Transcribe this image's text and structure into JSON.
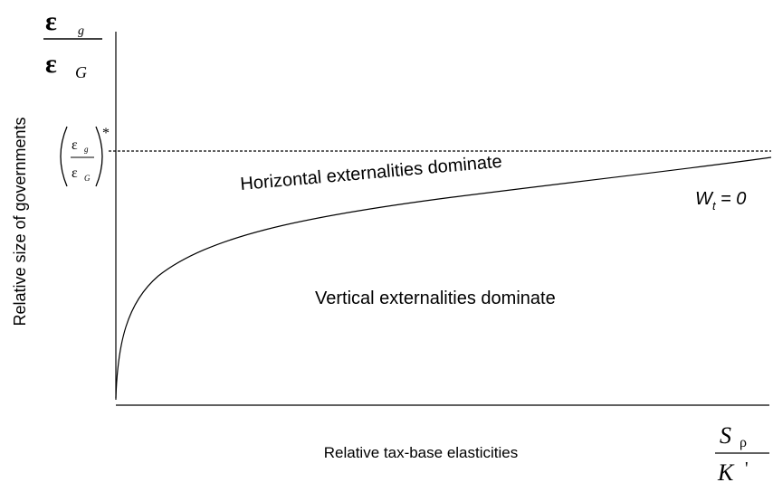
{
  "y_axis": {
    "label": "Relative size of governments",
    "symbol": {
      "numerator": "ε",
      "numerator_sub": "g",
      "denominator": "ε",
      "denominator_sub": "G"
    },
    "critical_value": {
      "numerator": "ε",
      "numerator_sub": "g",
      "denominator": "ε",
      "denominator_sub": "G",
      "star": "*"
    }
  },
  "x_axis": {
    "label": "Relative tax-base elasticities",
    "symbol": {
      "numerator": "S",
      "numerator_sub": "ρ",
      "denominator": "K",
      "denominator_sub": "'"
    }
  },
  "regions": [
    "Horizontal externalities dominate",
    "Vertical externalities dominate"
  ],
  "curve_label": {
    "main": "W",
    "sub": "t",
    "rest": "= 0"
  }
}
